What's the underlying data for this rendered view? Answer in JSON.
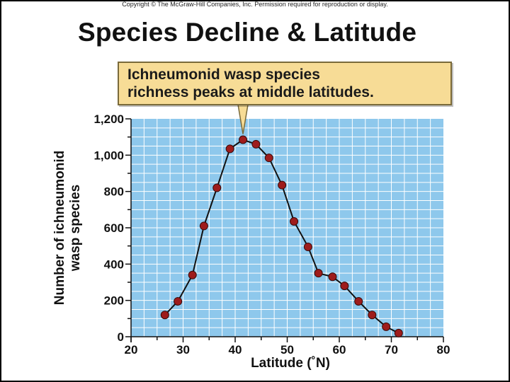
{
  "copyright": "Copyright © The McGraw-Hill Companies, Inc. Permission required for reproduction or display.",
  "title": "Species Decline & Latitude",
  "callout": {
    "line1": "Ichneumonid wasp species",
    "line2": "richness peaks at middle latitudes."
  },
  "colors": {
    "plot_background": "#8ec8ec",
    "grid": "#ffffff",
    "line": "#111111",
    "marker_fill": "#9e1c1c",
    "callout_fill": "#f7dc96"
  },
  "chart_data": {
    "type": "line",
    "xlabel": "Latitude (˚N)",
    "ylabel_line1": "Number of ichneumonid",
    "ylabel_line2": "wasp species",
    "xlim": [
      20,
      80
    ],
    "ylim": [
      0,
      1200
    ],
    "x_ticks": [
      "20",
      "30",
      "40",
      "50",
      "60",
      "70",
      "80"
    ],
    "y_ticks": [
      "0",
      "200",
      "400",
      "600",
      "800",
      "1,000",
      "1,200"
    ],
    "grid": true,
    "series": [
      {
        "x": [
          26.5,
          29,
          31.8,
          34,
          36.5,
          39,
          41.5,
          44,
          46.5,
          49,
          51.3,
          54,
          56,
          58.7,
          61,
          63.7,
          66.3,
          69,
          71.4
        ],
        "y": [
          120,
          195,
          340,
          610,
          820,
          1035,
          1085,
          1060,
          985,
          835,
          635,
          495,
          350,
          330,
          280,
          195,
          120,
          55,
          20
        ]
      }
    ]
  }
}
